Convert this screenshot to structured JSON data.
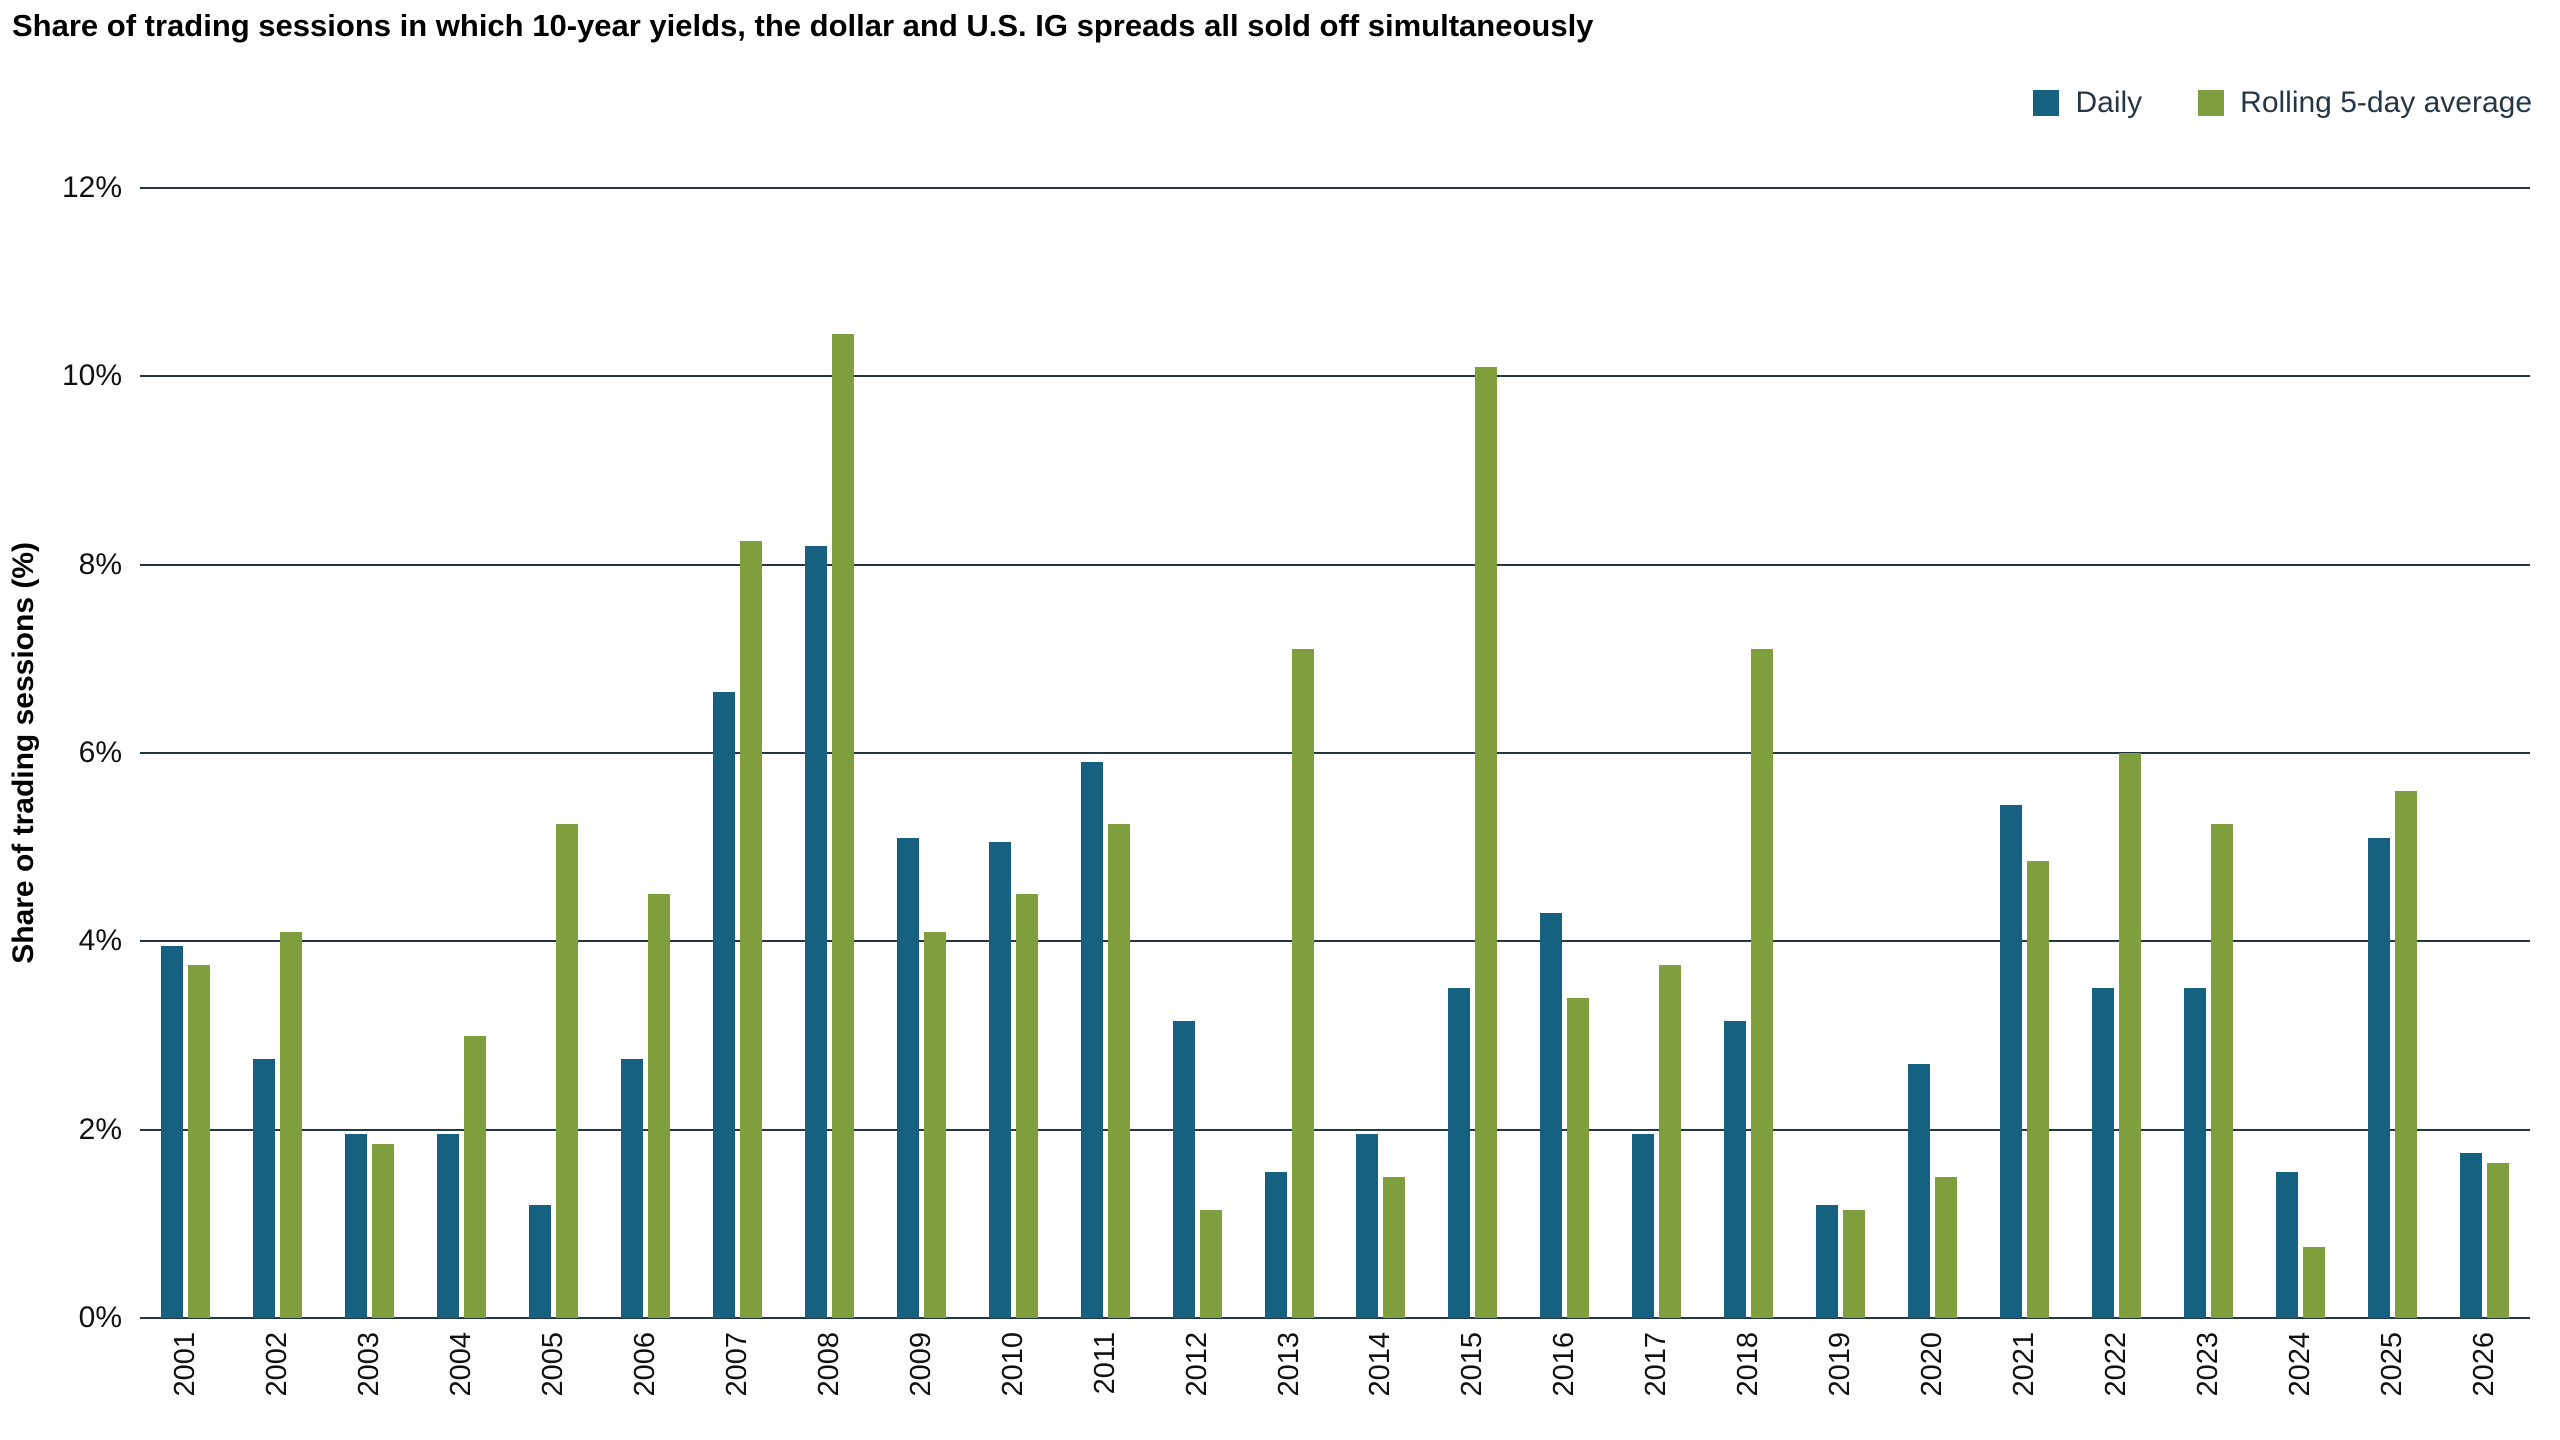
{
  "title": "Share of trading sessions in which 10-year yields, the dollar and U.S. IG spreads all sold off simultaneously",
  "legend": {
    "daily_label": "Daily",
    "rolling_label": "Rolling 5-day average"
  },
  "colors": {
    "daily": "#16617f",
    "rolling": "#7f9f3f",
    "gridline": "#233645",
    "text": "#111111"
  },
  "chart_data": {
    "type": "bar",
    "title": "Share of trading sessions in which 10-year yields, the dollar and U.S. IG spreads all sold off simultaneously",
    "xlabel": "",
    "ylabel": "Share of trading sessions (%)",
    "ylim": [
      0,
      12
    ],
    "grid": true,
    "legend_position": "top-right",
    "yticks": [
      {
        "value": 0,
        "label": "0%"
      },
      {
        "value": 2,
        "label": "2%"
      },
      {
        "value": 4,
        "label": "4%"
      },
      {
        "value": 6,
        "label": "6%"
      },
      {
        "value": 8,
        "label": "8%"
      },
      {
        "value": 10,
        "label": "10%"
      },
      {
        "value": 12,
        "label": "12%"
      }
    ],
    "categories": [
      "2001",
      "2002",
      "2003",
      "2004",
      "2005",
      "2006",
      "2007",
      "2008",
      "2009",
      "2010",
      "2011",
      "2012",
      "2013",
      "2014",
      "2015",
      "2016",
      "2017",
      "2018",
      "2019",
      "2020",
      "2021",
      "2022",
      "2023",
      "2024",
      "2025",
      "2026"
    ],
    "series": [
      {
        "name": "Daily",
        "values": [
          3.95,
          2.75,
          1.95,
          1.95,
          1.2,
          2.75,
          6.65,
          8.2,
          5.1,
          5.05,
          5.9,
          3.15,
          1.55,
          1.95,
          3.5,
          4.3,
          1.95,
          3.15,
          1.2,
          2.7,
          5.45,
          3.5,
          3.5,
          1.55,
          5.1,
          1.75
        ]
      },
      {
        "name": "Rolling 5-day average",
        "values": [
          3.75,
          4.1,
          1.85,
          3.0,
          5.25,
          4.5,
          8.25,
          10.45,
          4.1,
          4.5,
          5.25,
          1.15,
          7.1,
          1.5,
          10.1,
          3.4,
          3.75,
          7.1,
          1.15,
          1.5,
          4.85,
          6.0,
          5.25,
          0.75,
          5.6,
          1.65
        ]
      }
    ]
  }
}
